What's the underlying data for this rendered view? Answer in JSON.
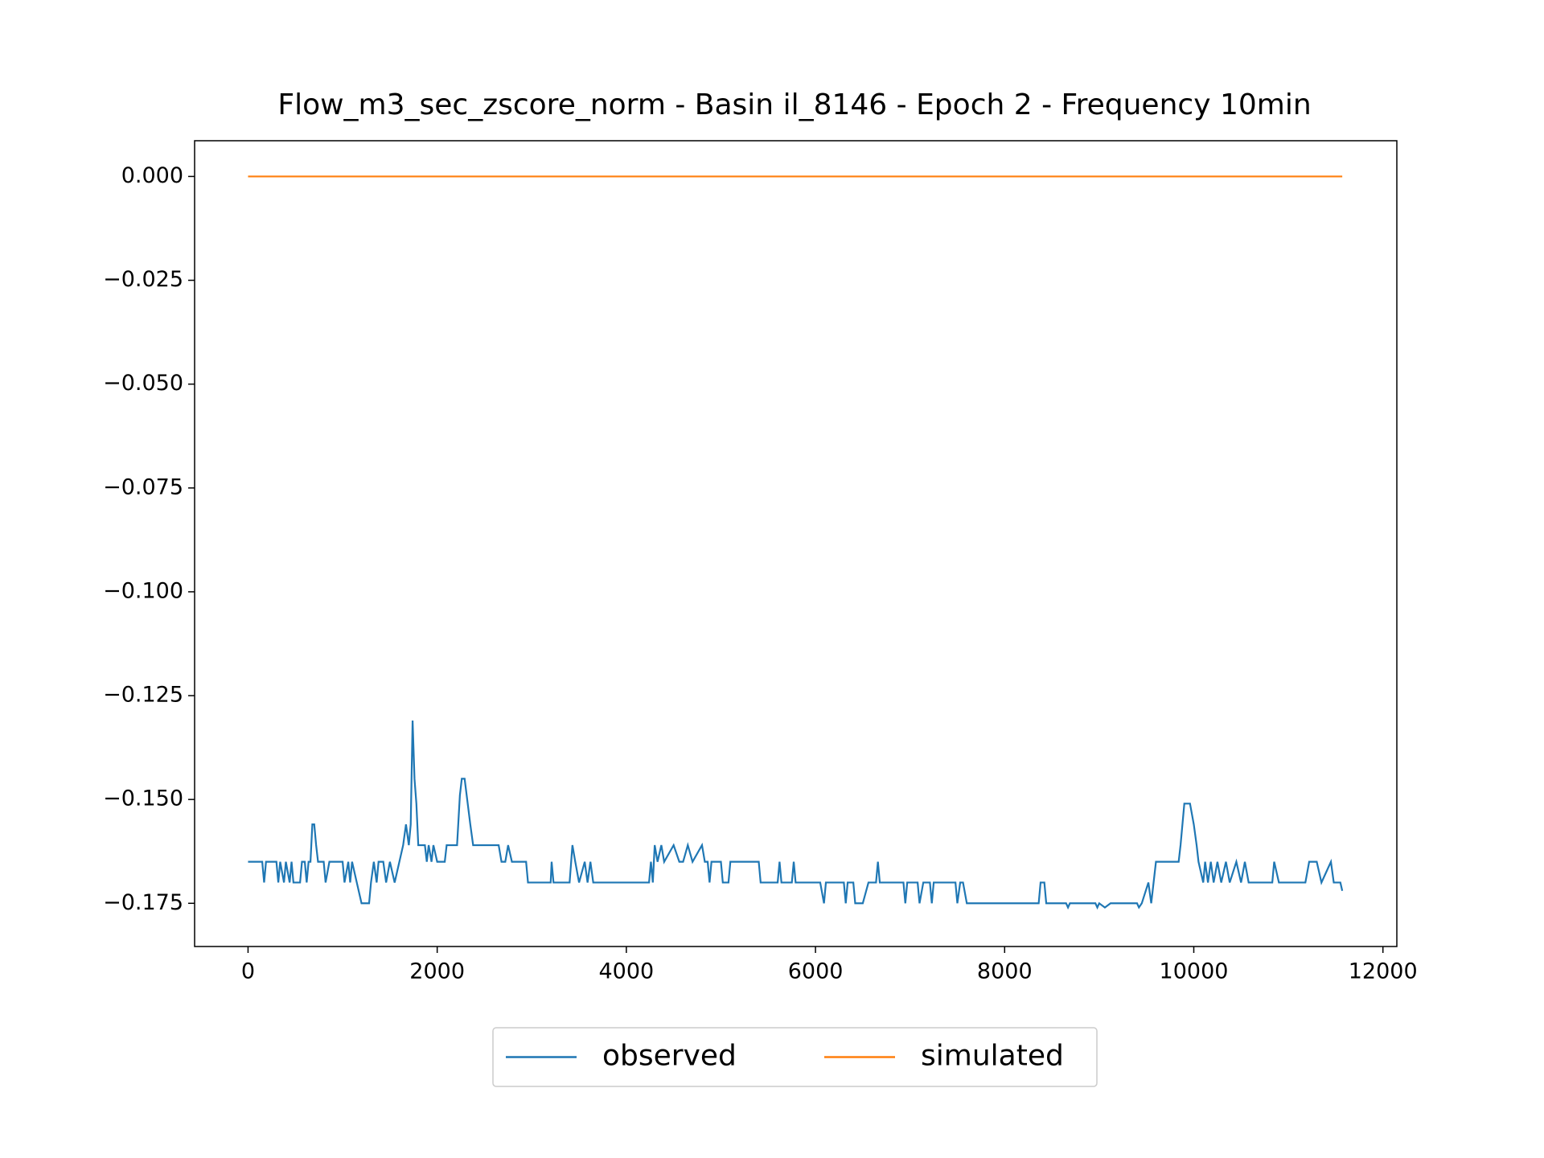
{
  "chart_data": {
    "type": "line",
    "title": "Flow_m3_sec_zscore_norm - Basin il_8146 - Epoch 2 - Frequency 10min",
    "xlim": [
      -565,
      12147
    ],
    "ylim": [
      -0.1854,
      0.0086
    ],
    "xticks": [
      0,
      2000,
      4000,
      6000,
      8000,
      10000,
      12000
    ],
    "yticks": [
      {
        "value": 0,
        "label": "0.000"
      },
      {
        "value": -0.025,
        "label": "−0.025"
      },
      {
        "value": -0.05,
        "label": "−0.050"
      },
      {
        "value": -0.075,
        "label": "−0.075"
      },
      {
        "value": -0.1,
        "label": "−0.100"
      },
      {
        "value": -0.125,
        "label": "−0.125"
      },
      {
        "value": -0.15,
        "label": "−0.150"
      },
      {
        "value": -0.175,
        "label": "−0.175"
      }
    ],
    "legend": "lower center outside",
    "series": [
      {
        "name": "observed",
        "color": "#1f77b4",
        "x": [
          0,
          150,
          170,
          190,
          300,
          320,
          340,
          380,
          400,
          440,
          460,
          480,
          550,
          570,
          600,
          620,
          640,
          660,
          680,
          700,
          720,
          740,
          800,
          820,
          860,
          1000,
          1020,
          1060,
          1080,
          1100,
          1150,
          1200,
          1280,
          1300,
          1330,
          1360,
          1380,
          1430,
          1460,
          1500,
          1550,
          1600,
          1640,
          1670,
          1700,
          1720,
          1740,
          1760,
          1780,
          1800,
          1870,
          1890,
          1910,
          1940,
          1960,
          2000,
          2080,
          2100,
          2210,
          2240,
          2260,
          2290,
          2350,
          2380,
          2650,
          2680,
          2720,
          2750,
          2790,
          2940,
          2960,
          3200,
          3210,
          3230,
          3400,
          3430,
          3460,
          3500,
          3560,
          3590,
          3620,
          3650,
          4240,
          4260,
          4280,
          4300,
          4330,
          4370,
          4400,
          4500,
          4560,
          4600,
          4650,
          4700,
          4800,
          4830,
          4860,
          4880,
          4900,
          5000,
          5020,
          5080,
          5100,
          5400,
          5420,
          5600,
          5620,
          5640,
          5750,
          5770,
          5790,
          6050,
          6090,
          6110,
          6300,
          6320,
          6340,
          6400,
          6420,
          6500,
          6560,
          6640,
          6660,
          6680,
          6930,
          6950,
          6970,
          7080,
          7100,
          7140,
          7210,
          7230,
          7250,
          7480,
          7500,
          7530,
          7560,
          7600,
          8360,
          8380,
          8420,
          8440,
          8650,
          8670,
          8690,
          8960,
          8980,
          9000,
          9060,
          9120,
          9400,
          9420,
          9450,
          9520,
          9550,
          9600,
          9840,
          9860,
          9900,
          9960,
          10000,
          10030,
          10050,
          10100,
          10120,
          10150,
          10180,
          10210,
          10250,
          10290,
          10340,
          10380,
          10450,
          10500,
          10540,
          10580,
          10830,
          10850,
          10900,
          11180,
          11220,
          11300,
          11350,
          11450,
          11480,
          11550,
          11570
        ],
        "values": [
          -0.165,
          -0.165,
          -0.17,
          -0.165,
          -0.165,
          -0.17,
          -0.165,
          -0.17,
          -0.165,
          -0.17,
          -0.165,
          -0.17,
          -0.17,
          -0.165,
          -0.165,
          -0.17,
          -0.165,
          -0.165,
          -0.156,
          -0.156,
          -0.161,
          -0.165,
          -0.165,
          -0.17,
          -0.165,
          -0.165,
          -0.17,
          -0.165,
          -0.17,
          -0.165,
          -0.17,
          -0.175,
          -0.175,
          -0.17,
          -0.165,
          -0.17,
          -0.165,
          -0.165,
          -0.17,
          -0.165,
          -0.17,
          -0.165,
          -0.161,
          -0.156,
          -0.161,
          -0.156,
          -0.131,
          -0.145,
          -0.151,
          -0.161,
          -0.161,
          -0.165,
          -0.161,
          -0.165,
          -0.161,
          -0.165,
          -0.165,
          -0.161,
          -0.161,
          -0.149,
          -0.145,
          -0.145,
          -0.156,
          -0.161,
          -0.161,
          -0.165,
          -0.165,
          -0.161,
          -0.165,
          -0.165,
          -0.17,
          -0.17,
          -0.165,
          -0.17,
          -0.17,
          -0.161,
          -0.165,
          -0.17,
          -0.165,
          -0.17,
          -0.165,
          -0.17,
          -0.17,
          -0.165,
          -0.17,
          -0.161,
          -0.165,
          -0.161,
          -0.165,
          -0.161,
          -0.165,
          -0.165,
          -0.161,
          -0.165,
          -0.161,
          -0.165,
          -0.165,
          -0.17,
          -0.165,
          -0.165,
          -0.17,
          -0.17,
          -0.165,
          -0.165,
          -0.17,
          -0.17,
          -0.165,
          -0.17,
          -0.17,
          -0.165,
          -0.17,
          -0.17,
          -0.175,
          -0.17,
          -0.17,
          -0.175,
          -0.17,
          -0.17,
          -0.175,
          -0.175,
          -0.17,
          -0.17,
          -0.165,
          -0.17,
          -0.17,
          -0.175,
          -0.17,
          -0.17,
          -0.175,
          -0.17,
          -0.17,
          -0.175,
          -0.17,
          -0.17,
          -0.175,
          -0.17,
          -0.17,
          -0.175,
          -0.175,
          -0.17,
          -0.17,
          -0.175,
          -0.175,
          -0.176,
          -0.175,
          -0.175,
          -0.176,
          -0.175,
          -0.176,
          -0.175,
          -0.175,
          -0.176,
          -0.175,
          -0.17,
          -0.175,
          -0.165,
          -0.165,
          -0.161,
          -0.151,
          -0.151,
          -0.156,
          -0.161,
          -0.165,
          -0.17,
          -0.165,
          -0.17,
          -0.165,
          -0.17,
          -0.165,
          -0.17,
          -0.165,
          -0.17,
          -0.165,
          -0.17,
          -0.165,
          -0.17,
          -0.17,
          -0.165,
          -0.17,
          -0.17,
          -0.165,
          -0.165,
          -0.17,
          -0.165,
          -0.17,
          -0.17,
          -0.172
        ]
      },
      {
        "name": "simulated",
        "color": "#ff7f0e",
        "x": [
          0,
          11570
        ],
        "values": [
          0,
          0
        ]
      }
    ]
  }
}
